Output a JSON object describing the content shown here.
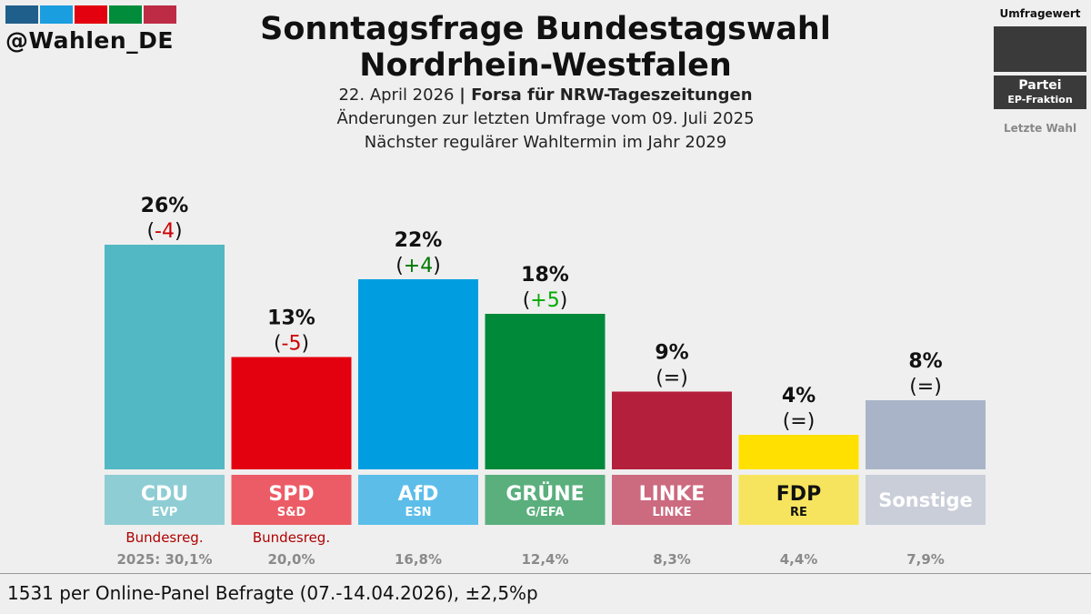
{
  "header": {
    "handle": "@Wahlen_DE",
    "title_line1": "Sonntagsfrage Bundestagswahl",
    "title_line2": "Nordrhein-Westfalen",
    "date": "22. April 2026",
    "institute": "Forsa für NRW-Tageszeitungen",
    "changes_note": "Änderungen zur letzten Umfrage vom 09. Juli 2025",
    "next_election": "Nächster regulärer Wahltermin im Jahr 2029"
  },
  "legend": {
    "poll_value": "Umfragewert",
    "party": "Partei",
    "ep_group": "EP-Fraktion",
    "last_election": "Letzte Wahl"
  },
  "logo_colors": [
    "#1f5f8b",
    "#1a9ee0",
    "#e3000f",
    "#008c3a",
    "#be2b45"
  ],
  "chart_data": {
    "type": "bar",
    "categories": [
      "CDU",
      "SPD",
      "AfD",
      "GRÜNE",
      "LINKE",
      "FDP",
      "Sonstige"
    ],
    "values": [
      26,
      13,
      22,
      18,
      9,
      4,
      8
    ],
    "value_labels": [
      "26%",
      "13%",
      "22%",
      "18%",
      "9%",
      "4%",
      "8%"
    ],
    "change_labels": [
      "-4",
      "-5",
      "+4",
      "+5",
      "=",
      "=",
      "="
    ],
    "ep_groups": [
      "EVP",
      "S&D",
      "ESN",
      "G/EFA",
      "LINKE",
      "RE",
      ""
    ],
    "government_labels": [
      "Bundesreg.",
      "Bundesreg.",
      "",
      "",
      "",
      "",
      ""
    ],
    "last_election_labels": [
      "2025: 30,1%",
      "20,0%",
      "16,8%",
      "12,4%",
      "8,3%",
      "4,4%",
      "7,9%"
    ],
    "bar_colors": [
      "#52b8c3",
      "#e3000f",
      "#009ee0",
      "#008939",
      "#b41f3c",
      "#ffe000",
      "#aab4c8"
    ],
    "label_colors": [
      "#8ecdd4",
      "#ec5c66",
      "#5cbde9",
      "#5aaf7d",
      "#cc6a80",
      "#f7e45e",
      "#c9ced9"
    ],
    "label_text_colors": [
      "#ffffff",
      "#ffffff",
      "#ffffff",
      "#ffffff",
      "#ffffff",
      "#111111",
      "#ffffff"
    ],
    "change_colors": [
      "#cc0000",
      "#cc0000",
      "#007700",
      "#00aa00",
      "#111111",
      "#111111",
      "#111111"
    ],
    "ylim": [
      0,
      26
    ]
  },
  "footer": {
    "sample_note": "1531 per Online-Panel Befragte (07.-14.04.2026), ±2,5%p"
  }
}
